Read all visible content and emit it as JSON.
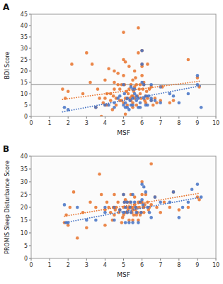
{
  "chart_data": [
    {
      "type": "scatter",
      "title": "A",
      "xlabel": "MSF",
      "ylabel": "BDI Score",
      "xlim": [
        0,
        10
      ],
      "ylim": [
        0,
        45
      ],
      "xticks": [
        0,
        1,
        2,
        3,
        4,
        5,
        6,
        7,
        8,
        9,
        10
      ],
      "yticks": [
        0,
        5,
        10,
        15,
        20,
        25,
        30,
        35,
        40,
        45
      ],
      "grid": false,
      "series": [
        {
          "type": "scatter",
          "color": "#E8722A",
          "x": [
            1.7,
            1.85,
            2.0,
            2.2,
            2.8,
            3.0,
            3.2,
            3.3,
            3.5,
            3.6,
            3.7,
            3.8,
            3.9,
            4.0,
            4.0,
            4.0,
            4.1,
            4.1,
            4.2,
            4.3,
            4.3,
            4.4,
            4.45,
            4.5,
            4.5,
            4.5,
            4.6,
            4.6,
            4.7,
            4.7,
            4.8,
            4.8,
            4.9,
            4.9,
            5.0,
            5.0,
            5.0,
            5.0,
            5.05,
            5.1,
            5.1,
            5.1,
            5.15,
            5.2,
            5.2,
            5.25,
            5.3,
            5.3,
            5.35,
            5.4,
            5.4,
            5.45,
            5.5,
            5.5,
            5.5,
            5.5,
            5.55,
            5.6,
            5.6,
            5.6,
            5.65,
            5.7,
            5.7,
            5.75,
            5.8,
            5.8,
            5.85,
            5.9,
            5.9,
            5.95,
            6.0,
            6.0,
            6.0,
            6.0,
            6.05,
            6.1,
            6.1,
            6.15,
            6.2,
            6.2,
            6.25,
            6.3,
            6.3,
            6.4,
            6.5,
            6.5,
            6.6,
            6.7,
            6.8,
            7.0,
            7.1,
            7.5,
            7.7,
            8.5,
            9.0,
            9.1
          ],
          "values": [
            12,
            8,
            11,
            23,
            10,
            28,
            15,
            23,
            4,
            12,
            8,
            0,
            6,
            8,
            16,
            5,
            5,
            10,
            21,
            10,
            7,
            3,
            9,
            20,
            15,
            12,
            5,
            8,
            19,
            14,
            7,
            12,
            14,
            7,
            37,
            25,
            18,
            6,
            14,
            1,
            24,
            8,
            11,
            5,
            8,
            10,
            12,
            22,
            8,
            7,
            14,
            9,
            9,
            6,
            16,
            4,
            11,
            20,
            13,
            8,
            17,
            5,
            14,
            9,
            39,
            28,
            12,
            14,
            10,
            8,
            29,
            23,
            22,
            18,
            12,
            15,
            14,
            7,
            9,
            6,
            11,
            23,
            8,
            12,
            7,
            13,
            5,
            8,
            6,
            7,
            13,
            6,
            7,
            25,
            17,
            13
          ]
        },
        {
          "type": "scatter",
          "color": "#4472C4",
          "x": [
            1.8,
            2.0,
            3.5,
            4.0,
            4.2,
            4.5,
            4.5,
            4.7,
            4.8,
            5.0,
            5.0,
            5.05,
            5.1,
            5.1,
            5.2,
            5.2,
            5.3,
            5.35,
            5.4,
            5.4,
            5.5,
            5.5,
            5.5,
            5.6,
            5.6,
            5.7,
            5.7,
            5.8,
            5.8,
            5.9,
            5.9,
            6.0,
            6.0,
            6.0,
            6.1,
            6.1,
            6.2,
            6.2,
            6.3,
            6.35,
            6.5,
            6.5,
            6.5,
            6.7,
            7.0,
            7.0,
            7.5,
            7.7,
            8.0,
            8.5,
            9.0,
            9.0,
            9.2
          ],
          "values": [
            4,
            3,
            4,
            5,
            5,
            6,
            4,
            8,
            9,
            14,
            5,
            10,
            6,
            4,
            4,
            8,
            3,
            7,
            13,
            5,
            8,
            5,
            12,
            12,
            10,
            7,
            9,
            4,
            8,
            6,
            4,
            29,
            15,
            23,
            14,
            8,
            9,
            5,
            5,
            9,
            14,
            8,
            7,
            7,
            6,
            13,
            10,
            9,
            6,
            10,
            18,
            14,
            4
          ]
        },
        {
          "type": "line",
          "line_style": "dotted",
          "color": "#E8722A",
          "x": [
            1.7,
            9.1
          ],
          "values": [
            7.5,
            15.5
          ]
        },
        {
          "type": "line",
          "line_style": "dotted",
          "color": "#4472C4",
          "x": [
            1.7,
            9.2
          ],
          "values": [
            2.0,
            13.5
          ]
        },
        {
          "type": "hline",
          "color": "#808080",
          "values": [
            14
          ]
        }
      ]
    },
    {
      "type": "scatter",
      "title": "B",
      "xlabel": "MSF",
      "ylabel": "PROMIS Sleep Disturbance Score",
      "xlim": [
        0,
        10
      ],
      "ylim": [
        0,
        40
      ],
      "xticks": [
        0,
        1,
        2,
        3,
        4,
        5,
        6,
        7,
        8,
        9,
        10
      ],
      "yticks": [
        0,
        5,
        10,
        15,
        20,
        25,
        30,
        35,
        40
      ],
      "grid": false,
      "series": [
        {
          "type": "scatter",
          "color": "#E8722A",
          "x": [
            1.8,
            1.9,
            2.0,
            2.1,
            2.3,
            2.5,
            2.8,
            3.0,
            3.2,
            3.5,
            3.7,
            3.8,
            4.0,
            4.0,
            4.1,
            4.2,
            4.3,
            4.4,
            4.45,
            4.5,
            4.5,
            4.55,
            4.6,
            4.7,
            4.75,
            4.8,
            4.9,
            4.95,
            5.0,
            5.0,
            5.0,
            5.05,
            5.1,
            5.1,
            5.15,
            5.2,
            5.2,
            5.25,
            5.3,
            5.3,
            5.35,
            5.4,
            5.4,
            5.45,
            5.5,
            5.5,
            5.5,
            5.55,
            5.6,
            5.6,
            5.65,
            5.7,
            5.7,
            5.75,
            5.8,
            5.8,
            5.85,
            5.9,
            5.9,
            5.95,
            6.0,
            6.0,
            6.0,
            6.05,
            6.1,
            6.1,
            6.15,
            6.2,
            6.3,
            6.35,
            6.4,
            6.5,
            6.5,
            6.7,
            6.8,
            7.0,
            7.2,
            7.5,
            7.7,
            8.0,
            8.5,
            9.0,
            9.1
          ],
          "values": [
            14,
            17,
            13,
            20,
            26,
            8,
            18,
            12,
            22,
            20,
            33,
            25,
            19,
            13,
            22,
            20,
            18,
            15,
            20,
            25,
            17,
            19,
            20,
            22,
            18,
            19,
            14,
            16,
            25,
            20,
            17,
            22,
            23,
            18,
            20,
            22,
            18,
            19,
            20,
            15,
            22,
            25,
            20,
            18,
            20,
            19,
            15,
            17,
            24,
            21,
            19,
            17,
            20,
            18,
            22,
            15,
            20,
            17,
            22,
            18,
            30,
            25,
            22,
            20,
            20,
            18,
            21,
            25,
            22,
            19,
            20,
            37,
            21,
            24,
            20,
            18,
            22,
            20,
            26,
            19,
            20,
            24,
            23
          ]
        },
        {
          "type": "scatter",
          "color": "#4472C4",
          "x": [
            1.8,
            1.9,
            2.0,
            2.5,
            3.0,
            3.5,
            4.0,
            4.0,
            4.5,
            4.5,
            4.8,
            5.0,
            5.0,
            5.05,
            5.1,
            5.1,
            5.2,
            5.2,
            5.3,
            5.35,
            5.4,
            5.4,
            5.5,
            5.5,
            5.6,
            5.65,
            5.7,
            5.8,
            5.9,
            5.95,
            6.0,
            6.0,
            6.05,
            6.1,
            6.2,
            6.3,
            6.4,
            6.5,
            6.7,
            7.0,
            7.5,
            7.7,
            8.0,
            8.2,
            8.5,
            8.7,
            9.0,
            9.2
          ],
          "values": [
            21,
            14,
            14,
            20,
            15,
            15,
            20,
            18,
            15,
            20,
            19,
            25,
            18,
            22,
            14,
            20,
            22,
            18,
            14,
            20,
            18,
            22,
            14,
            25,
            22,
            20,
            18,
            14,
            22,
            18,
            29,
            23,
            21,
            28,
            26,
            20,
            18,
            16,
            24,
            22,
            22,
            26,
            16,
            20,
            22,
            27,
            29,
            24
          ]
        },
        {
          "type": "line",
          "line_style": "dotted",
          "color": "#E8722A",
          "x": [
            1.8,
            9.1
          ],
          "values": [
            16.5,
            25.5
          ]
        },
        {
          "type": "line",
          "line_style": "dotted",
          "color": "#4472C4",
          "x": [
            1.8,
            9.2
          ],
          "values": [
            14.0,
            24.0
          ]
        }
      ]
    }
  ]
}
